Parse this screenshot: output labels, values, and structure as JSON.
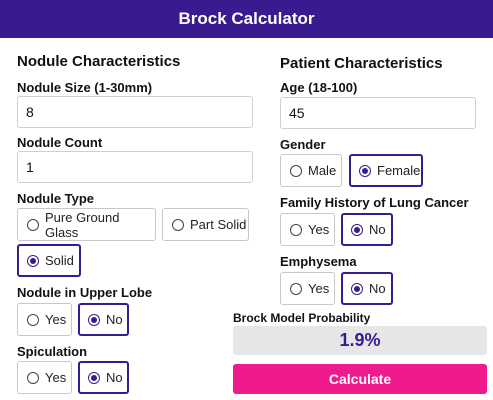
{
  "app": {
    "title": "Brock Calculator"
  },
  "nodule": {
    "section_title": "Nodule Characteristics",
    "size": {
      "label": "Nodule Size (1-30mm)",
      "value": "8"
    },
    "count": {
      "label": "Nodule Count",
      "value": "1"
    },
    "type": {
      "label": "Nodule Type",
      "options": [
        "Pure Ground Glass",
        "Part Solid",
        "Solid"
      ],
      "selected": "Solid"
    },
    "upper_lobe": {
      "label": "Nodule in Upper Lobe",
      "options": [
        "Yes",
        "No"
      ],
      "selected": "No"
    },
    "spiculation": {
      "label": "Spiculation",
      "options": [
        "Yes",
        "No"
      ],
      "selected": "No"
    }
  },
  "patient": {
    "section_title": "Patient Characteristics",
    "age": {
      "label": "Age (18-100)",
      "value": "45"
    },
    "gender": {
      "label": "Gender",
      "options": [
        "Male",
        "Female"
      ],
      "selected": "Female"
    },
    "family_history": {
      "label": "Family History of Lung Cancer",
      "options": [
        "Yes",
        "No"
      ],
      "selected": "No"
    },
    "emphysema": {
      "label": "Emphysema",
      "options": [
        "Yes",
        "No"
      ],
      "selected": "No"
    }
  },
  "result": {
    "label": "Brock Model Probability",
    "value": "1.9%"
  },
  "calculate_label": "Calculate",
  "colors": {
    "header": "#3a1b8f",
    "accent": "#3a1b8f",
    "button": "#ee1a8e",
    "result_bg": "#e6e6e6"
  }
}
